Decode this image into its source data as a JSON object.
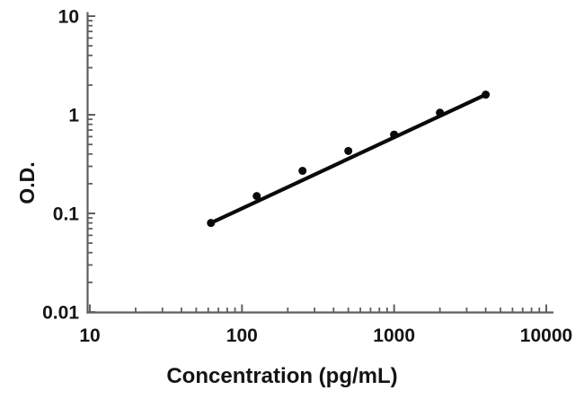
{
  "figure": {
    "background": "#ffffff",
    "description": "Log-log ELISA standard curve: optical density versus analyte concentration"
  },
  "chart_data": {
    "type": "line",
    "series": [
      {
        "name": "standard-curve",
        "x": [
          62.5,
          125,
          250,
          500,
          1000,
          2000,
          4000
        ],
        "y": [
          0.08,
          0.15,
          0.27,
          0.43,
          0.63,
          1.05,
          1.6
        ]
      }
    ],
    "title": "",
    "xlabel": "Concentration (pg/mL)",
    "ylabel": "O.D.",
    "xscale": "log",
    "yscale": "log",
    "xlim": [
      10,
      10000
    ],
    "ylim": [
      0.01,
      10
    ],
    "x_ticks": [
      10,
      100,
      1000,
      10000
    ],
    "x_tick_labels": [
      "10",
      "100",
      "1000",
      "10000"
    ],
    "y_ticks": [
      0.01,
      0.1,
      1,
      10
    ],
    "y_tick_labels": [
      "0.01",
      "0.1",
      "1",
      "10"
    ],
    "minor_ticks": "log decades 2-9, drawn inside plot",
    "grid": false,
    "legend": "none",
    "marker": "filled-circle",
    "line_style": "straight fit segment from first to last point",
    "colors": {
      "curve": "#0a0a0a",
      "marker": "#0a0a0a",
      "axis": "#5f5f5f",
      "text": "#141414"
    }
  }
}
